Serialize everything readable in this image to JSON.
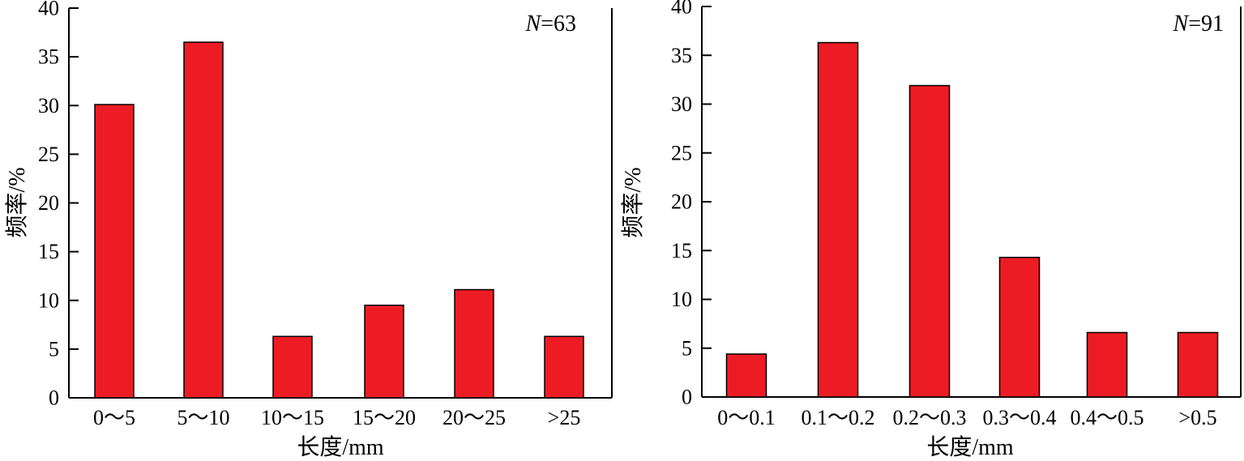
{
  "chart_data": [
    {
      "type": "bar",
      "annotation_prefix": "N",
      "annotation_value": "=63",
      "categories": [
        "0～5",
        "5～10",
        "10～15",
        "15～20",
        "20～25",
        ">25"
      ],
      "values": [
        30.1,
        36.5,
        6.3,
        9.5,
        11.1,
        6.3
      ],
      "xlabel": "长度/mm",
      "ylabel": "频率/%",
      "ylim": [
        0,
        40
      ],
      "yticks": [
        "0",
        "5",
        "10",
        "15",
        "20",
        "25",
        "30",
        "35",
        "40"
      ],
      "bar_color": "#ed1c24",
      "grid": false
    },
    {
      "type": "bar",
      "annotation_prefix": "N",
      "annotation_value": "=91",
      "categories": [
        "0～0.1",
        "0.1～0.2",
        "0.2～0.3",
        "0.3～0.4",
        "0.4～0.5",
        ">0.5"
      ],
      "values": [
        4.4,
        36.3,
        31.9,
        14.3,
        6.6,
        6.6
      ],
      "xlabel": "长度/mm",
      "ylabel": "频率/%",
      "ylim": [
        0,
        40
      ],
      "yticks": [
        "0",
        "5",
        "10",
        "15",
        "20",
        "25",
        "30",
        "35",
        "40"
      ],
      "bar_color": "#ed1c24",
      "grid": false
    }
  ]
}
